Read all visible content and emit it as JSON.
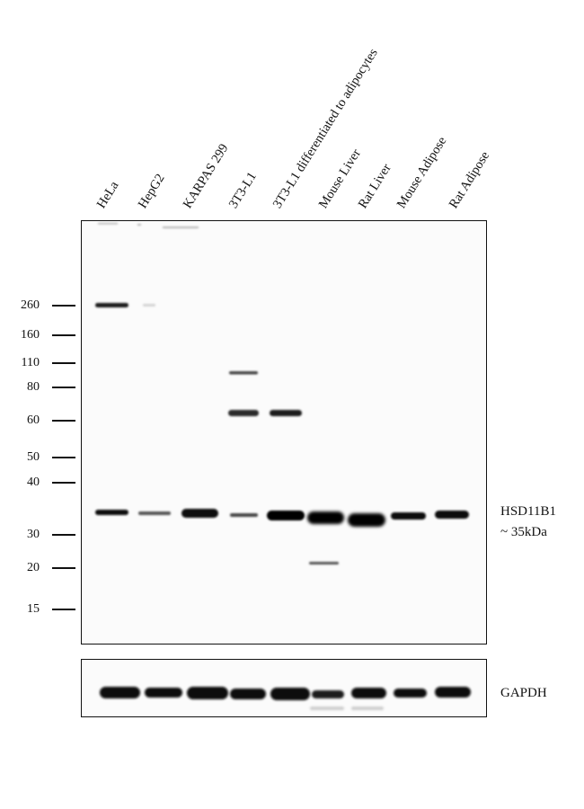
{
  "lanes": [
    "HeLa",
    "HepG2",
    "KARPAS 299",
    "3T3-L1",
    "3T3-L1 differentiated to adipocytes",
    "Mouse Liver",
    "Rat Liver",
    "Mouse Adipose",
    "Rat Adipose"
  ],
  "markers_kda": [
    "260",
    "160",
    "110",
    "80",
    "60",
    "50",
    "40",
    "30",
    "20",
    "15"
  ],
  "target": {
    "name": "HSD11B1",
    "size": "~ 35kDa"
  },
  "loading_control": "GAPDH"
}
